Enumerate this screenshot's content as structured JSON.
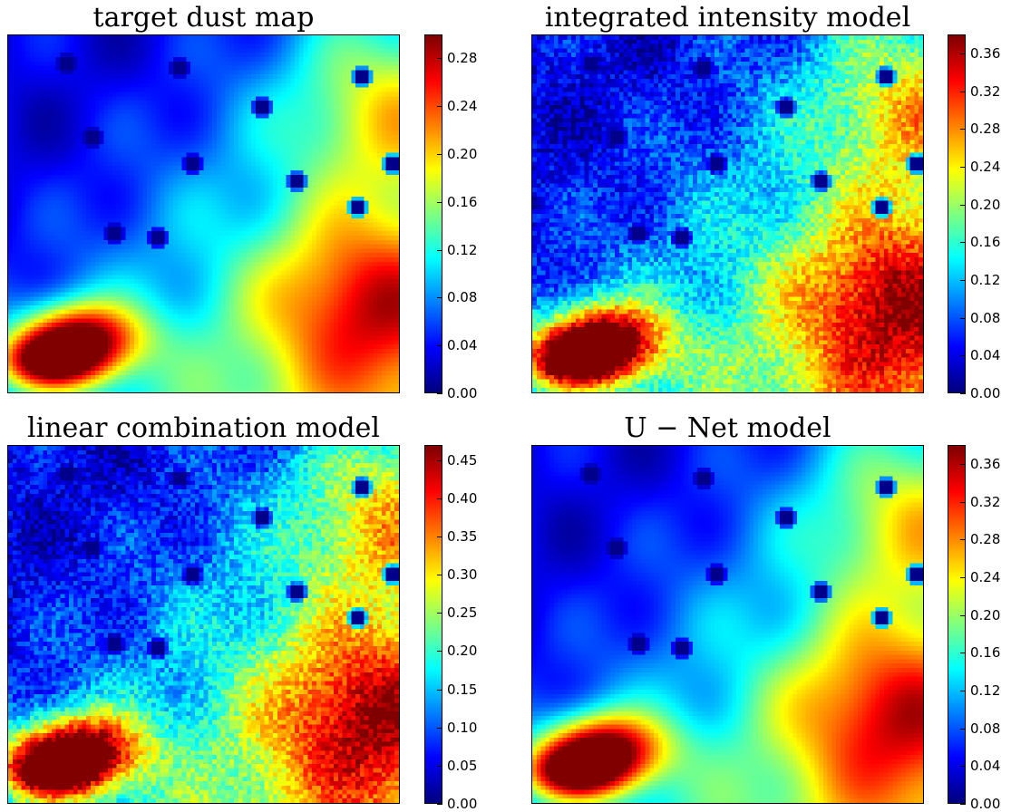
{
  "chart_data": [
    {
      "type": "heatmap",
      "title": "target dust map",
      "colormap": "jet",
      "grid": false,
      "colorbar": {
        "range": [
          0.0,
          0.3
        ],
        "ticks": [
          "0.00",
          "0.04",
          "0.08",
          "0.12",
          "0.16",
          "0.20",
          "0.24",
          "0.28"
        ]
      },
      "peak_value": 0.3,
      "low_region": "top-left",
      "high_region": "bottom-left",
      "pixelation": "smooth"
    },
    {
      "type": "heatmap",
      "title": "integrated intensity model",
      "colormap": "jet",
      "grid": false,
      "colorbar": {
        "range": [
          0.0,
          0.38
        ],
        "ticks": [
          "0.00",
          "0.04",
          "0.08",
          "0.12",
          "0.16",
          "0.20",
          "0.24",
          "0.28",
          "0.32",
          "0.36"
        ]
      },
      "peak_value": 0.38,
      "low_region": "top-left",
      "high_region": "bottom-left",
      "pixelation": "noisy"
    },
    {
      "type": "heatmap",
      "title": "linear combination model",
      "colormap": "jet",
      "grid": false,
      "colorbar": {
        "range": [
          0.0,
          0.47
        ],
        "ticks": [
          "0.00",
          "0.05",
          "0.10",
          "0.15",
          "0.20",
          "0.25",
          "0.30",
          "0.35",
          "0.40",
          "0.45"
        ]
      },
      "peak_value": 0.47,
      "low_region": "top-left",
      "high_region": "bottom-left",
      "pixelation": "noisy"
    },
    {
      "type": "heatmap",
      "title": "U − Net model",
      "colormap": "jet",
      "grid": false,
      "colorbar": {
        "range": [
          0.0,
          0.38
        ],
        "ticks": [
          "0.00",
          "0.04",
          "0.08",
          "0.12",
          "0.16",
          "0.20",
          "0.24",
          "0.28",
          "0.32",
          "0.36"
        ]
      },
      "peak_value": 0.38,
      "low_region": "top-left",
      "high_region": "bottom-left",
      "pixelation": "smooth"
    }
  ]
}
